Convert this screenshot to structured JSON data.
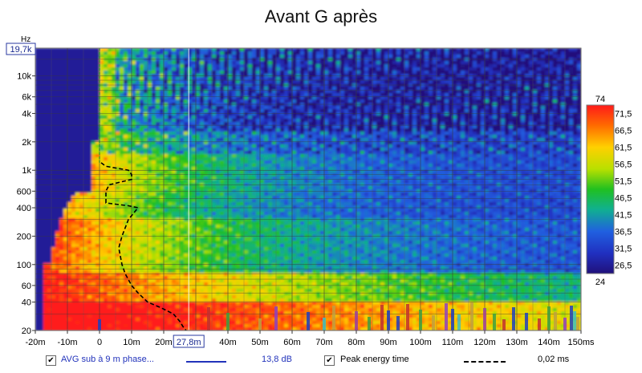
{
  "chart_data": {
    "type": "heatmap",
    "title": "Avant G après",
    "x_axis": {
      "unit": "ms",
      "range": [
        -20,
        150
      ],
      "ticks": [
        "-20m",
        "-10m",
        "0",
        "10m",
        "20m",
        "30m",
        "40m",
        "50m",
        "60m",
        "70m",
        "80m",
        "90m",
        "100m",
        "110m",
        "120m",
        "130m",
        "140m",
        "150ms"
      ],
      "cursor_label": "27,8m",
      "cursor_value": 27.8
    },
    "y_axis": {
      "unit": "Hz",
      "scale": "log",
      "range": [
        20,
        19700
      ],
      "top_label": "19,7k",
      "ticks": [
        {
          "value": 10000,
          "label": "10k"
        },
        {
          "value": 6000,
          "label": "6k"
        },
        {
          "value": 4000,
          "label": "4k"
        },
        {
          "value": 2000,
          "label": "2k"
        },
        {
          "value": 1000,
          "label": "1k"
        },
        {
          "value": 600,
          "label": "600"
        },
        {
          "value": 400,
          "label": "400"
        },
        {
          "value": 200,
          "label": "200"
        },
        {
          "value": 100,
          "label": "100"
        },
        {
          "value": 60,
          "label": "60"
        },
        {
          "value": 40,
          "label": "40"
        },
        {
          "value": 20,
          "label": "20"
        }
      ]
    },
    "colorbar": {
      "unit": "dB",
      "max_label": "74",
      "min_label": "24",
      "ticks": [
        "71,5",
        "66,5",
        "61,5",
        "56,5",
        "51,5",
        "46,5",
        "41,5",
        "36,5",
        "31,5",
        "26,5"
      ],
      "tick_values": [
        71.5,
        66.5,
        61.5,
        56.5,
        51.5,
        46.5,
        41.5,
        36.5,
        31.5,
        26.5
      ],
      "range": [
        24,
        74
      ]
    },
    "peak_energy_time": {
      "freqs": [
        1200,
        1100,
        1000,
        900,
        800,
        700,
        600,
        500,
        450,
        420,
        400,
        300,
        200,
        150,
        100,
        80,
        60,
        50,
        40,
        35,
        30,
        25,
        22,
        20
      ],
      "times_ms": [
        0.5,
        2,
        9,
        10,
        10,
        3,
        2,
        2,
        2,
        9,
        12,
        9,
        7,
        6,
        7,
        8,
        10,
        12,
        15,
        19,
        23,
        25,
        26,
        27
      ]
    },
    "legend": [
      {
        "name": "AVG sub à 9 m phase...",
        "value": "13,8 dB",
        "color": "#2233bb",
        "style": "solid",
        "checked": true
      },
      {
        "name": "Peak energy time",
        "value": "0,02 ms",
        "color": "#000000",
        "style": "dashed",
        "checked": true
      }
    ]
  }
}
